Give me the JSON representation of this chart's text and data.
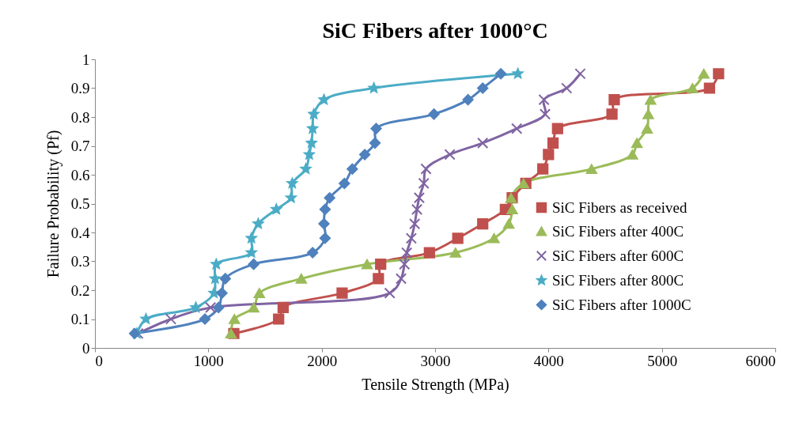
{
  "chart_data": {
    "type": "line",
    "title": "SiC Fibers after 1000°C",
    "xlabel": "Tensile Strength (MPa)",
    "ylabel": "Failure Probability (Pf)",
    "xlim": [
      0,
      6000
    ],
    "xticks": [
      0,
      1000,
      2000,
      3000,
      4000,
      5000,
      6000
    ],
    "ylim": [
      0,
      1
    ],
    "yticks": [
      0,
      0.1,
      0.2,
      0.3,
      0.4,
      0.5,
      0.6,
      0.7,
      0.8,
      0.9,
      1
    ],
    "grid": false,
    "legend": "right",
    "series": [
      {
        "name": "SiC Fibers as received",
        "color": "#c0504d",
        "marker": "square",
        "x": [
          1225,
          1620,
          1660,
          2180,
          2500,
          2520,
          2950,
          3200,
          3420,
          3620,
          3680,
          3800,
          3950,
          4000,
          4040,
          4080,
          4560,
          4580,
          5420,
          5500
        ],
        "values": [
          0.05,
          0.1,
          0.14,
          0.19,
          0.24,
          0.29,
          0.33,
          0.38,
          0.43,
          0.48,
          0.52,
          0.57,
          0.62,
          0.67,
          0.71,
          0.76,
          0.81,
          0.86,
          0.9,
          0.95
        ]
      },
      {
        "name": "SiC Fibers after 400C",
        "color": "#9bbb59",
        "marker": "triangle",
        "x": [
          1200,
          1230,
          1400,
          1450,
          1820,
          2400,
          3180,
          3520,
          3650,
          3680,
          3670,
          3780,
          4380,
          4740,
          4780,
          4870,
          4880,
          4900,
          5270,
          5370
        ],
        "values": [
          0.05,
          0.1,
          0.14,
          0.19,
          0.24,
          0.29,
          0.33,
          0.38,
          0.43,
          0.48,
          0.52,
          0.57,
          0.62,
          0.67,
          0.71,
          0.76,
          0.81,
          0.86,
          0.9,
          0.95
        ]
      },
      {
        "name": "SiC Fibers after 600C",
        "color": "#8064a2",
        "marker": "cross",
        "x": [
          380,
          670,
          1020,
          2600,
          2700,
          2730,
          2750,
          2790,
          2820,
          2840,
          2860,
          2900,
          2920,
          3130,
          3420,
          3720,
          3970,
          3960,
          4160,
          4280
        ],
        "values": [
          0.05,
          0.1,
          0.14,
          0.19,
          0.24,
          0.29,
          0.33,
          0.38,
          0.43,
          0.48,
          0.52,
          0.57,
          0.62,
          0.67,
          0.71,
          0.76,
          0.81,
          0.86,
          0.9,
          0.95
        ]
      },
      {
        "name": "SiC Fibers after 800C",
        "color": "#4bacc6",
        "marker": "star",
        "x": [
          370,
          450,
          890,
          1050,
          1060,
          1070,
          1380,
          1380,
          1440,
          1600,
          1730,
          1740,
          1860,
          1890,
          1910,
          1920,
          1930,
          2020,
          2460,
          3730
        ],
        "values": [
          0.05,
          0.1,
          0.14,
          0.19,
          0.24,
          0.29,
          0.33,
          0.38,
          0.43,
          0.48,
          0.52,
          0.57,
          0.62,
          0.67,
          0.71,
          0.76,
          0.81,
          0.86,
          0.9,
          0.95
        ]
      },
      {
        "name": "SiC Fibers after 1000C",
        "color": "#4f81bd",
        "marker": "diamond",
        "x": [
          350,
          970,
          1090,
          1120,
          1150,
          1400,
          1920,
          2030,
          2020,
          2030,
          2070,
          2200,
          2270,
          2380,
          2470,
          2480,
          2990,
          3290,
          3420,
          3580
        ],
        "values": [
          0.05,
          0.1,
          0.14,
          0.19,
          0.24,
          0.29,
          0.33,
          0.38,
          0.43,
          0.48,
          0.52,
          0.57,
          0.62,
          0.67,
          0.71,
          0.76,
          0.81,
          0.86,
          0.9,
          0.95
        ]
      }
    ]
  }
}
